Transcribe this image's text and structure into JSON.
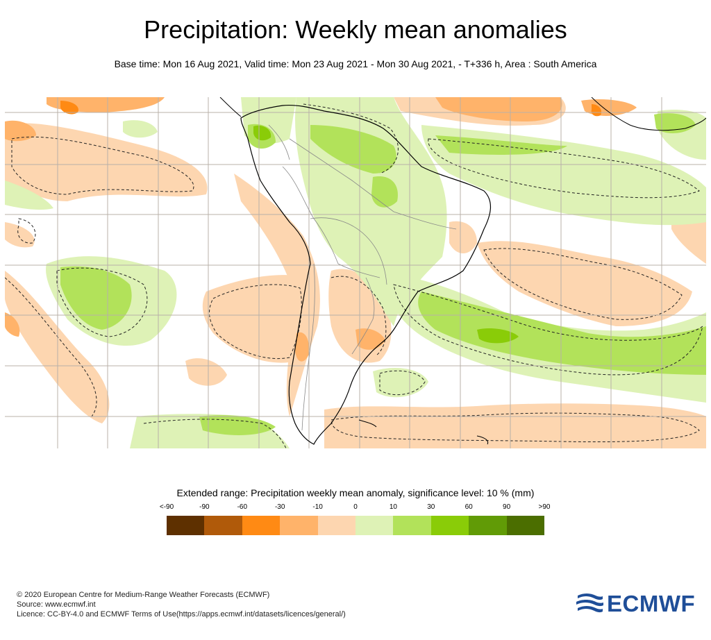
{
  "header": {
    "title": "Precipitation: Weekly mean anomalies",
    "subtitle": "Base time: Mon 16 Aug 2021, Valid time: Mon 23 Aug 2021 - Mon 30 Aug 2021, - T+336 h, Area : South America"
  },
  "legend": {
    "title": "Extended range: Precipitation weekly mean anomaly, significance level: 10 % (mm)",
    "tick_labels": [
      "<-90",
      "-90",
      "-60",
      "-30",
      "-10",
      "0",
      "10",
      "30",
      "60",
      "90",
      ">90"
    ],
    "colors": [
      "#5e3000",
      "#b05a0a",
      "#ff8a14",
      "#ffb36a",
      "#fdd6b0",
      "#def2b6",
      "#b2e25a",
      "#8acc08",
      "#619b06",
      "#4b6e00"
    ]
  },
  "map_colors": {
    "dry_light": "#fdd6b0",
    "dry_medium": "#ffb36a",
    "dry_strong": "#ff8a14",
    "wet_light": "#def2b6",
    "wet_medium": "#b2e25a",
    "wet_strong": "#8acc08",
    "grid": "#b8b0a8",
    "coast": "#000000",
    "border": "#888888"
  },
  "footer": {
    "copyright": "© 2020 European Centre for Medium-Range Weather Forecasts (ECMWF)",
    "source": "Source: www.ecmwf.int",
    "licence": "Licence: CC-BY-4.0 and ECMWF Terms of Use(https://apps.ecmwf.int/datasets/licences/general/)"
  },
  "logo": {
    "text": "ECMWF",
    "color": "#1f4e98"
  }
}
